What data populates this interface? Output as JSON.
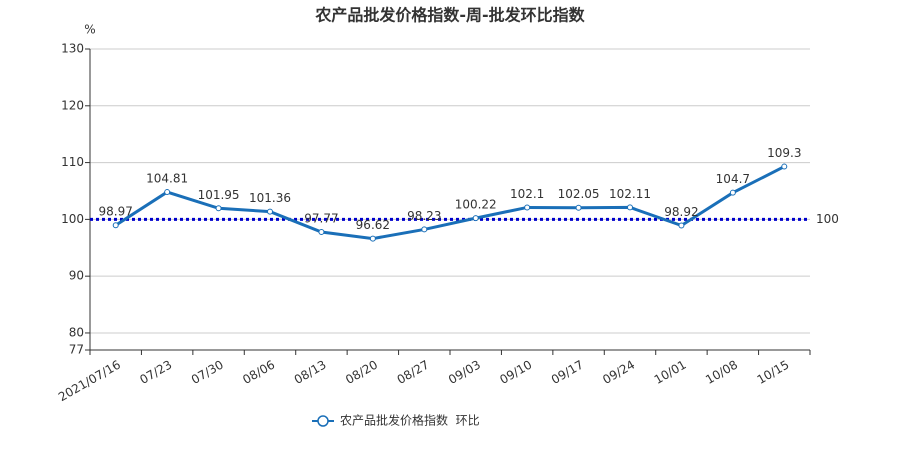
{
  "chart_data": {
    "type": "line",
    "title": "农产品批发价格指数-周-批发环比指数",
    "y_unit": "%",
    "categories": [
      "2021/07/16",
      "07/23",
      "07/30",
      "08/06",
      "08/13",
      "08/20",
      "08/27",
      "09/03",
      "09/10",
      "09/17",
      "09/24",
      "10/01",
      "10/08",
      "10/15"
    ],
    "series": [
      {
        "name": "农产品批发价格指数  环比",
        "color": "#1a6fb8",
        "values": [
          98.97,
          104.81,
          101.95,
          101.36,
          97.77,
          96.62,
          98.23,
          100.22,
          102.1,
          102.05,
          102.11,
          98.92,
          104.7,
          109.3
        ]
      }
    ],
    "ylim": [
      77,
      130
    ],
    "yticks": [
      77,
      80,
      90,
      100,
      110,
      120,
      130
    ],
    "grid": true,
    "markline": {
      "value": 100,
      "color": "#0000cc"
    }
  }
}
